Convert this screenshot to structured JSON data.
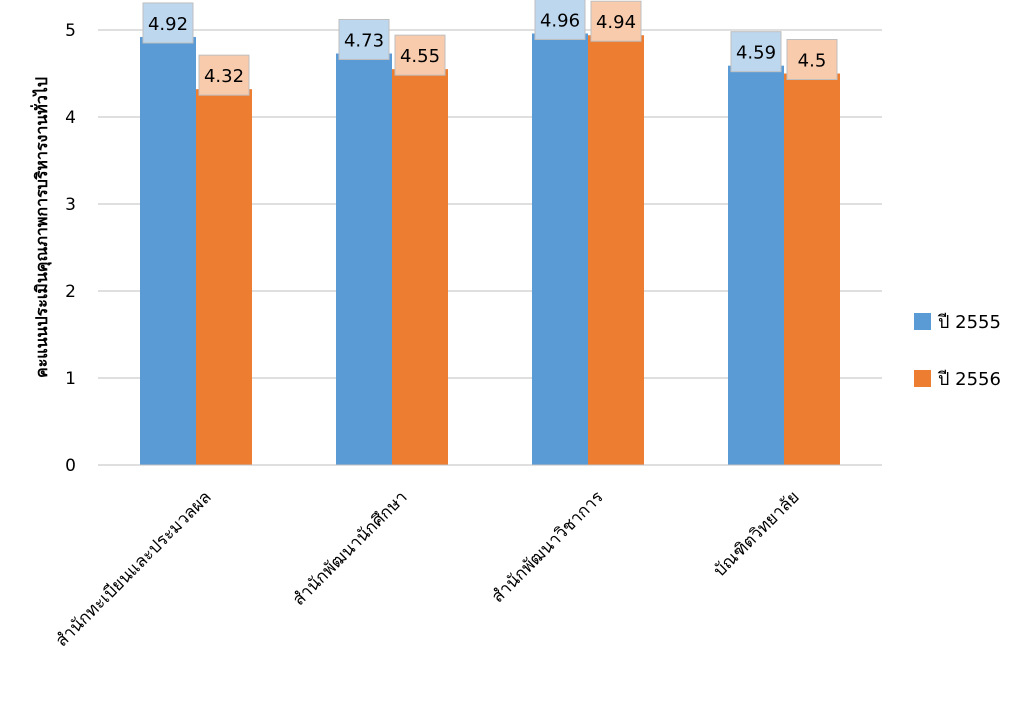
{
  "chart_data": {
    "type": "bar",
    "title": "",
    "xlabel": "",
    "ylabel": "คะแนนประเมินคุณภาพการบริหารงานทั่วไป",
    "ylim": [
      0,
      5
    ],
    "yticks": [
      "0",
      "1",
      "2",
      "3",
      "4",
      "5"
    ],
    "grid": true,
    "legend_position": "right",
    "categories": [
      "สำนักทะเบียนและประมวลผล",
      "สำนักพัฒนานักศึกษา",
      "สำนักพัฒนาวิชาการ",
      "บัณฑิตวิทยาลัย"
    ],
    "series": [
      {
        "name": "ปี 2555",
        "color": "#5B9BD5",
        "label_bg": "#BDD7EE",
        "values": [
          4.92,
          4.73,
          4.96,
          4.59
        ],
        "labels": [
          "4.92",
          "4.73",
          "4.96",
          "4.59"
        ]
      },
      {
        "name": "ปี 2556",
        "color": "#ED7D31",
        "label_bg": "#F8CBAD",
        "values": [
          4.32,
          4.55,
          4.94,
          4.5
        ],
        "labels": [
          "4.32",
          "4.55",
          "4.94",
          "4.5"
        ]
      }
    ]
  }
}
